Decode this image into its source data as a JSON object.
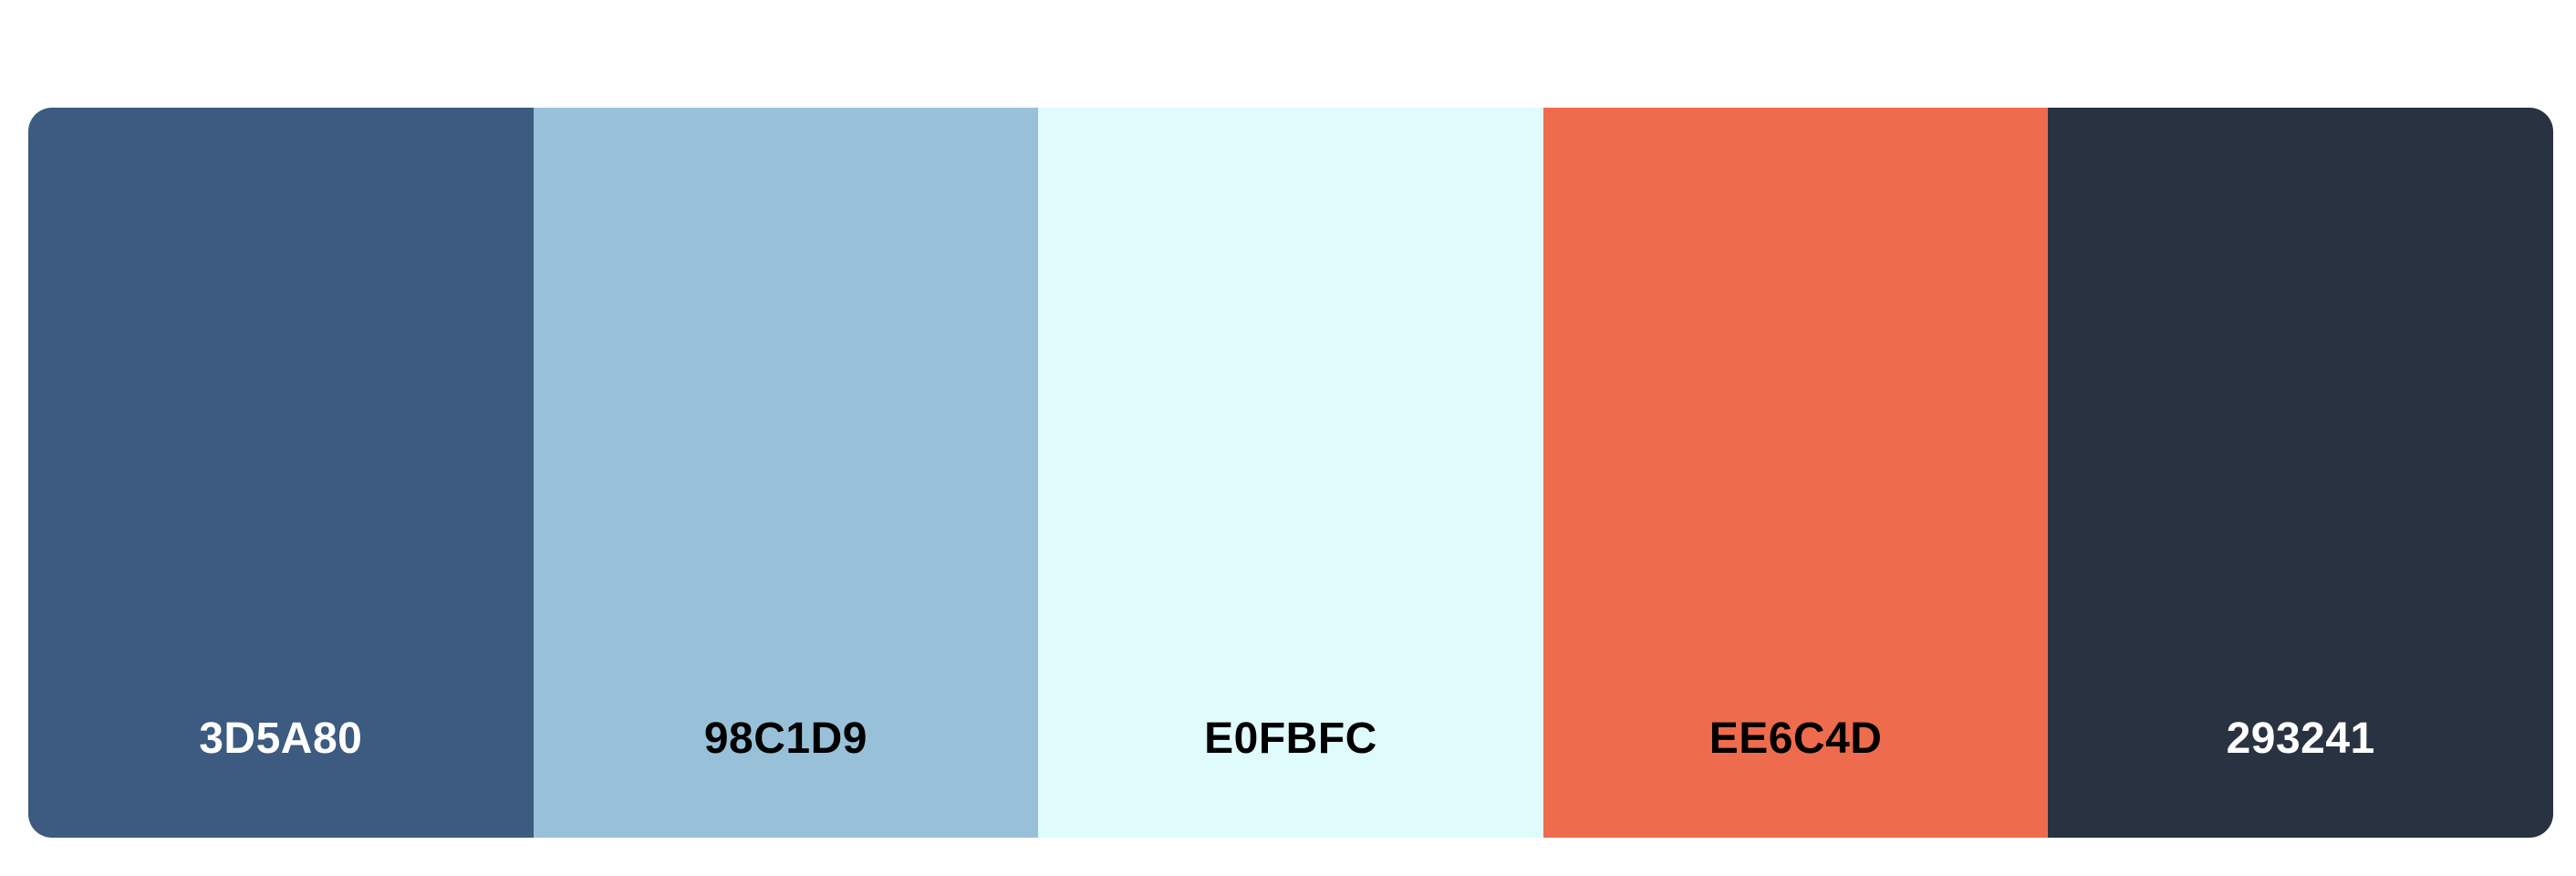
{
  "page": {
    "background_color": "#FFFFFF"
  },
  "palette": {
    "swatches": [
      {
        "hex": "3D5A80",
        "color": "#3D5A80",
        "text_color": "#FFFFFF"
      },
      {
        "hex": "98C1D9",
        "color": "#98C1D9",
        "text_color": "#000000"
      },
      {
        "hex": "E0FBFC",
        "color": "#E0FBFC",
        "text_color": "#000000"
      },
      {
        "hex": "EE6C4D",
        "color": "#EE6C4D",
        "text_color": "#000000"
      },
      {
        "hex": "293241",
        "color": "#293241",
        "text_color": "#FFFFFF"
      }
    ]
  }
}
